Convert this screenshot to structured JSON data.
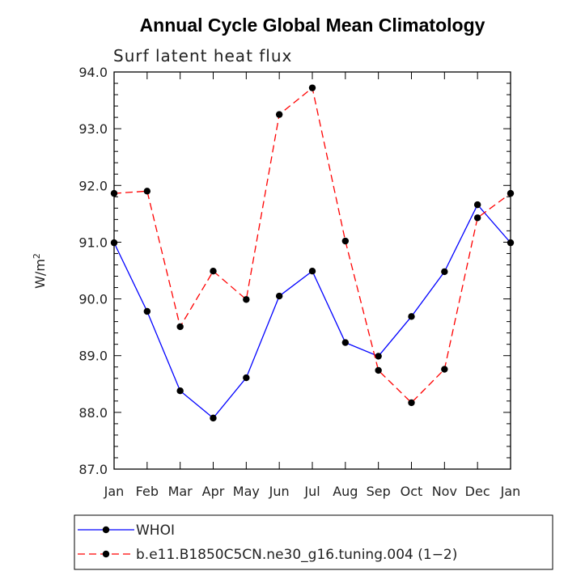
{
  "chart_data": {
    "type": "line",
    "title": "Annual Cycle Global Mean Climatology",
    "subtitle": "Surf latent heat flux",
    "xlabel": "",
    "ylabel": "W/m",
    "ylabel_superscript": "2",
    "categories": [
      "Jan",
      "Feb",
      "Mar",
      "Apr",
      "May",
      "Jun",
      "Jul",
      "Aug",
      "Sep",
      "Oct",
      "Nov",
      "Dec",
      "Jan"
    ],
    "ylim": [
      87.0,
      94.0
    ],
    "yticks": [
      "87.0",
      "88.0",
      "89.0",
      "90.0",
      "91.0",
      "92.0",
      "93.0",
      "94.0"
    ],
    "grid": false,
    "legend_position": "bottom",
    "series": [
      {
        "name": "WHOI",
        "color": "#0000ff",
        "style": "solid",
        "values": [
          90.99,
          89.78,
          88.38,
          87.9,
          88.61,
          90.05,
          90.49,
          89.23,
          88.99,
          89.69,
          90.48,
          91.66,
          90.99
        ]
      },
      {
        "name": "b.e11.B1850C5CN.ne30_g16.tuning.004 (1−2)",
        "color": "#ff0000",
        "style": "dashed",
        "values": [
          91.86,
          91.9,
          89.51,
          90.49,
          89.99,
          93.25,
          93.72,
          91.02,
          88.74,
          88.17,
          88.76,
          91.43,
          91.86
        ]
      }
    ]
  }
}
